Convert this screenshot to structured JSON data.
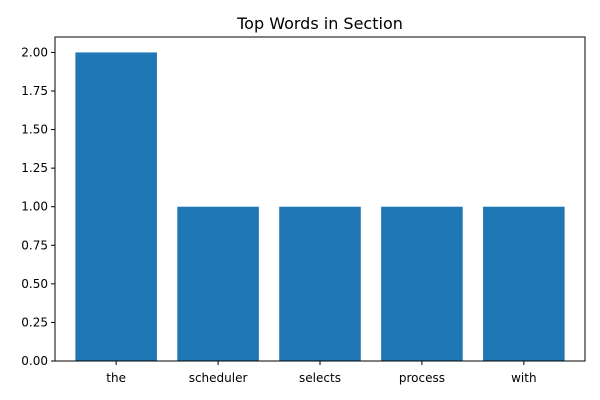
{
  "chart_data": {
    "type": "bar",
    "title": "Top Words in Section",
    "xlabel": "",
    "ylabel": "",
    "categories": [
      "the",
      "scheduler",
      "selects",
      "process",
      "with"
    ],
    "values": [
      2,
      1,
      1,
      1,
      1
    ],
    "ylim": [
      0,
      2.1
    ],
    "yticks": [
      "0.00",
      "0.25",
      "0.50",
      "0.75",
      "1.00",
      "1.25",
      "1.50",
      "1.75",
      "2.00"
    ],
    "bar_color": "#1f77b4",
    "grid": false,
    "legend": "none"
  }
}
